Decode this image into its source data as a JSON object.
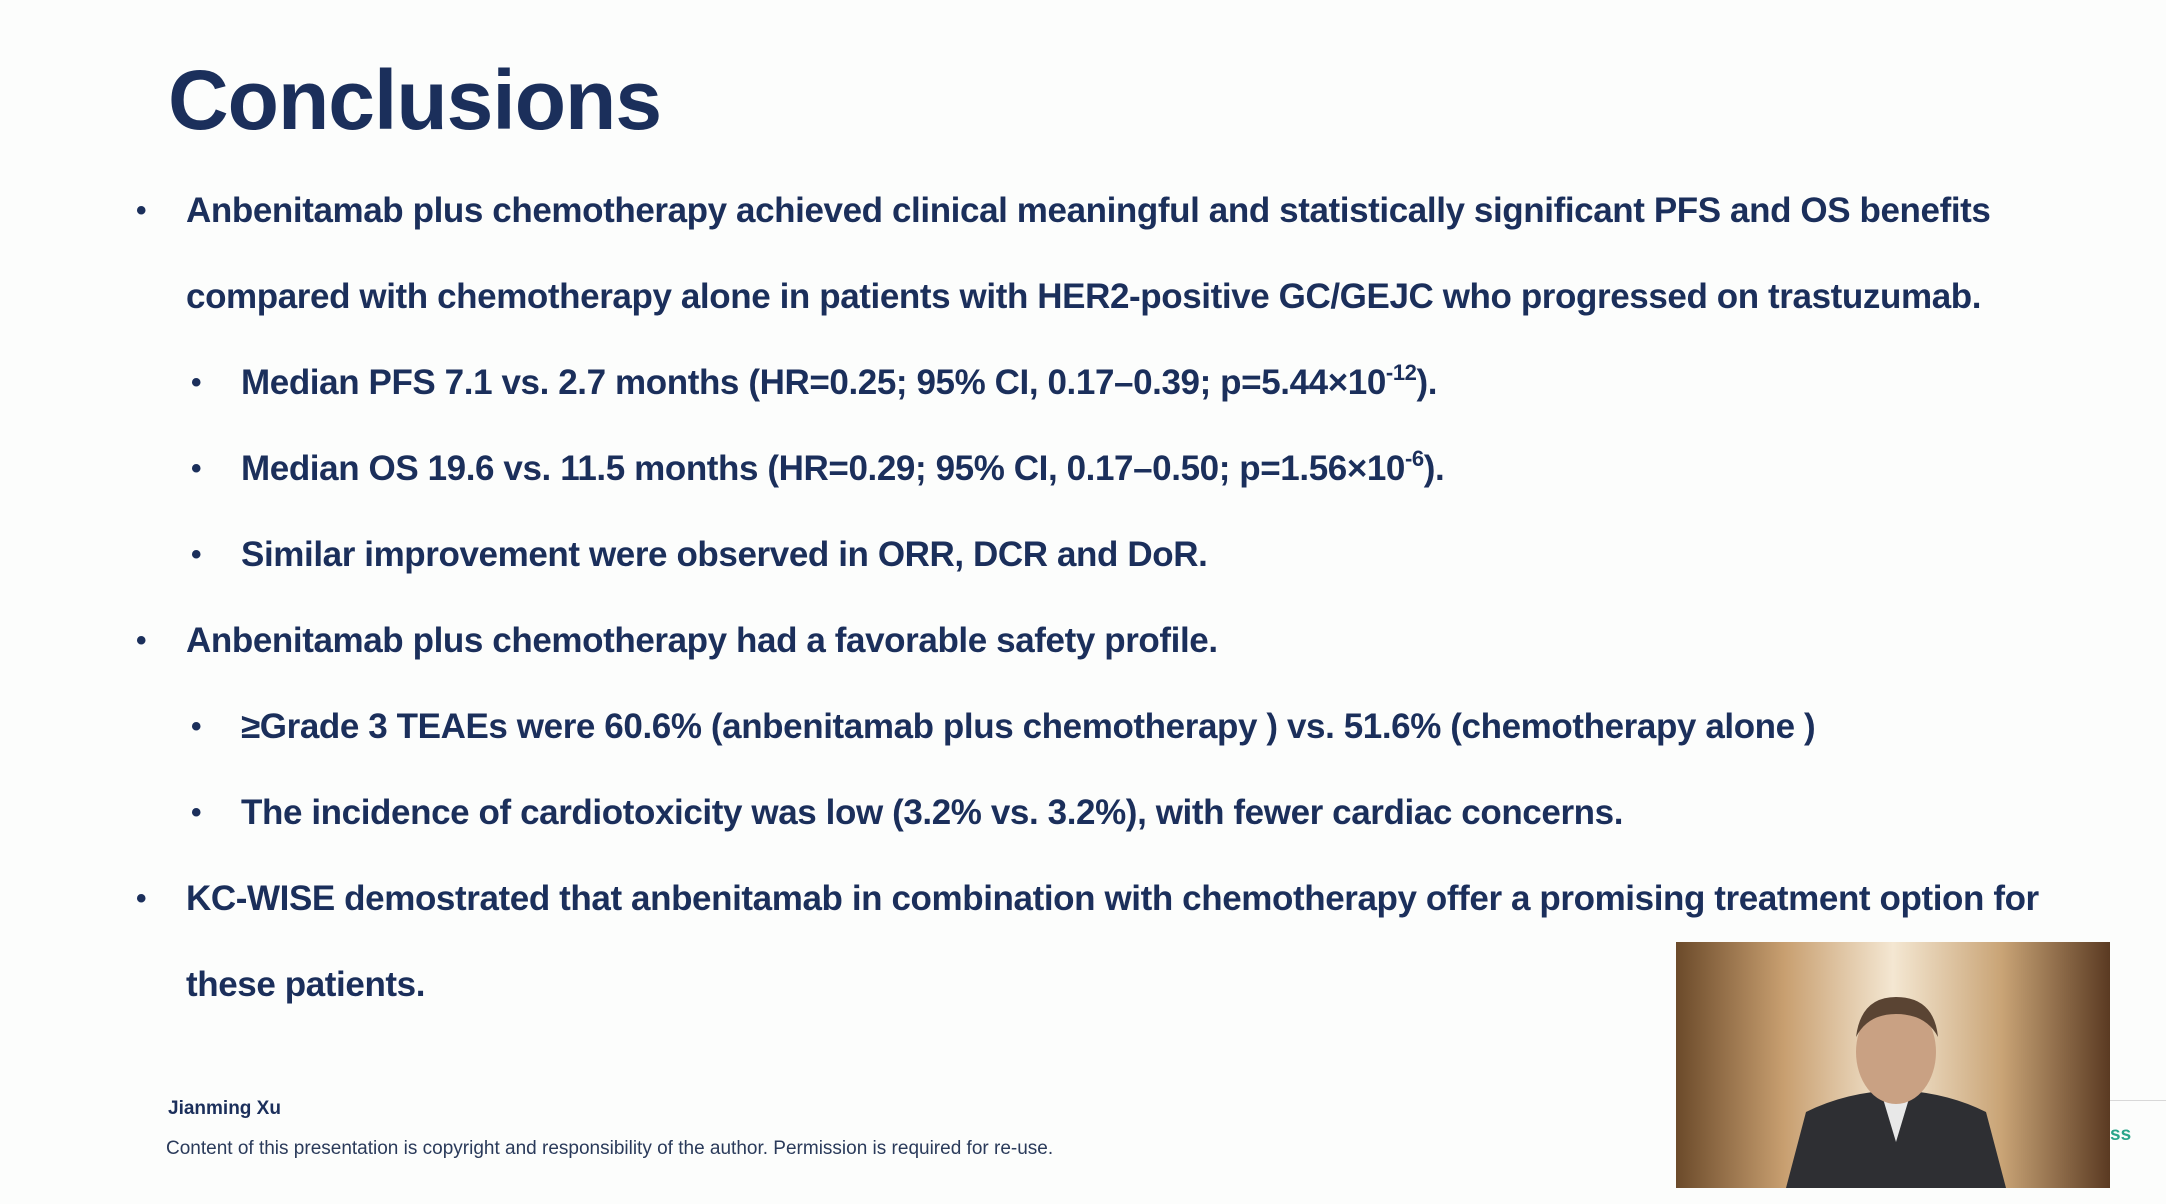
{
  "title": "Conclusions",
  "bullets": [
    {
      "text": "Anbenitamab plus chemotherapy achieved clinical meaningful and statistically significant PFS and OS benefits compared with chemotherapy alone in patients with HER2-positive GC/GEJC who progressed on trastuzumab.",
      "sub": [
        {
          "text": "Median PFS 7.1 vs. 2.7 months (HR=0.25; 95% CI, 0.17–0.39; p=5.44×10",
          "sup": "-12",
          "tail": ")."
        },
        {
          "text": "Median OS 19.6 vs. 11.5 months (HR=0.29; 95% CI, 0.17–0.50; p=1.56×10",
          "sup": "-6",
          "tail": ")."
        },
        {
          "text": "Similar improvement were observed in ORR, DCR and DoR."
        }
      ]
    },
    {
      "text": "Anbenitamab plus chemotherapy had a favorable safety profile.",
      "sub": [
        {
          "text": "≥Grade 3 TEAEs were 60.6% (anbenitamab plus chemotherapy ) vs. 51.6% (chemotherapy alone )"
        },
        {
          "text": "The incidence of cardiotoxicity was low (3.2% vs. 3.2%), with fewer cardiac concerns."
        }
      ]
    },
    {
      "text": "KC-WISE demostrated that anbenitamab in combination with chemotherapy offer a promising treatment option for these patients."
    }
  ],
  "author": "Jianming Xu",
  "copyright": "Content of this presentation is copyright and responsibility of the author. Permission is required for re-use.",
  "corner_text": "ss"
}
